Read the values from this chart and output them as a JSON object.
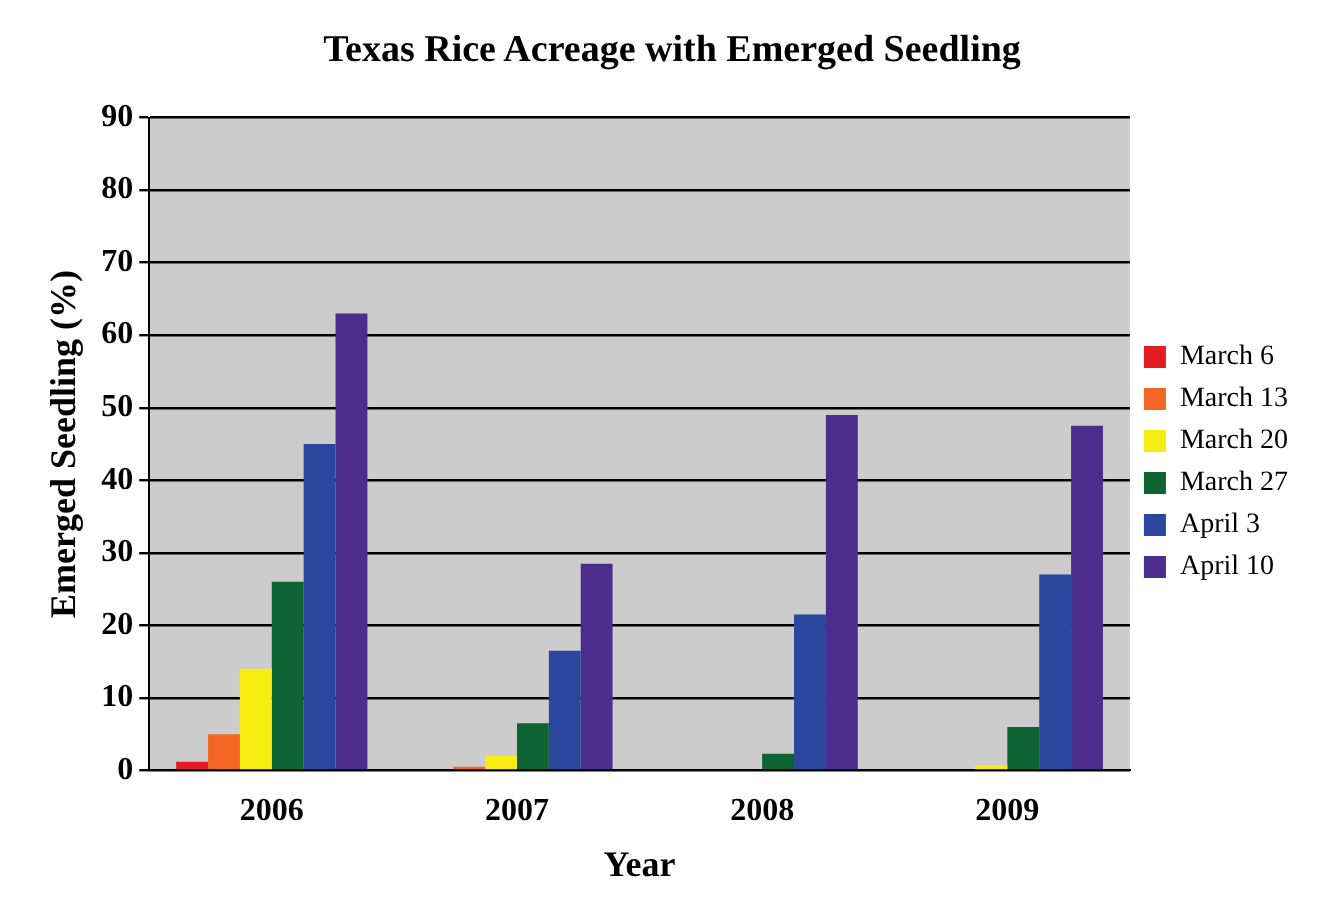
{
  "chart_data": {
    "type": "bar",
    "title": "Texas Rice Acreage with Emerged Seedling",
    "xlabel": "Year",
    "ylabel": "Emerged Seedling (%)",
    "categories": [
      "2006",
      "2007",
      "2008",
      "2009"
    ],
    "series": [
      {
        "name": "March 6",
        "color": "#e31c23",
        "values": [
          1.2,
          0,
          0,
          0
        ]
      },
      {
        "name": "March 13",
        "color": "#f26522",
        "values": [
          5,
          0.5,
          0,
          0
        ]
      },
      {
        "name": "March 20",
        "color": "#f7ec13",
        "values": [
          14,
          2,
          0,
          0.7
        ]
      },
      {
        "name": "March 27",
        "color": "#0e6332",
        "values": [
          26,
          6.5,
          2.3,
          6
        ]
      },
      {
        "name": "April 3",
        "color": "#2b479d",
        "values": [
          45,
          16.5,
          21.5,
          27
        ]
      },
      {
        "name": "April 10",
        "color": "#4a2d8c",
        "values": [
          63,
          28.5,
          49,
          47.5
        ]
      }
    ],
    "ylim": [
      0,
      90
    ],
    "yticks": [
      0,
      10,
      20,
      30,
      40,
      50,
      60,
      70,
      80,
      90
    ],
    "grid": "y",
    "legend": "right"
  }
}
